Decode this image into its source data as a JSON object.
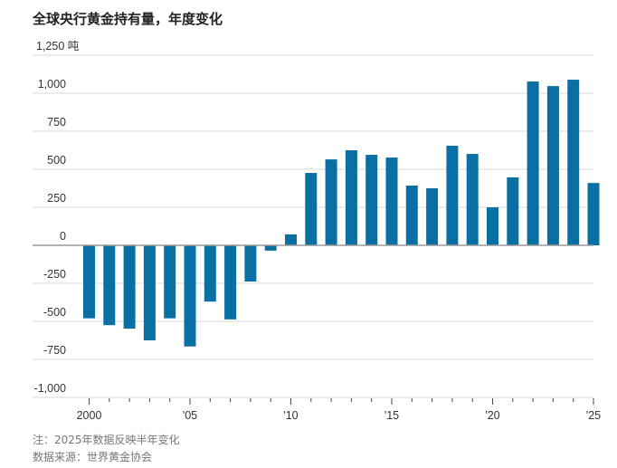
{
  "chart_data": {
    "type": "bar",
    "title": "全球央行黄金持有量，年度变化",
    "ylabel_unit": "吨",
    "ylim": [
      -1000,
      1250
    ],
    "yticks": [
      1250,
      1000,
      750,
      500,
      250,
      0,
      -250,
      -500,
      -750,
      -1000
    ],
    "ytick_labels": [
      "1,250 吨",
      "1,000",
      "750",
      "500",
      "250",
      "0",
      "-250",
      "-500",
      "-750",
      "-1,000"
    ],
    "x": [
      2000,
      2001,
      2002,
      2003,
      2004,
      2005,
      2006,
      2007,
      2008,
      2009,
      2010,
      2011,
      2012,
      2013,
      2014,
      2015,
      2016,
      2017,
      2018,
      2019,
      2020,
      2021,
      2022,
      2023,
      2024,
      2025
    ],
    "values": [
      -480,
      -525,
      -548,
      -625,
      -480,
      -665,
      -370,
      -487,
      -238,
      -35,
      72,
      476,
      565,
      625,
      595,
      577,
      393,
      375,
      655,
      601,
      250,
      447,
      1077,
      1047,
      1089,
      410
    ],
    "xtick_labels": [
      {
        "year": 2000,
        "label": "2000"
      },
      {
        "year": 2005,
        "label": "'05"
      },
      {
        "year": 2010,
        "label": "'10"
      },
      {
        "year": 2015,
        "label": "'15"
      },
      {
        "year": 2020,
        "label": "'20"
      },
      {
        "year": 2025,
        "label": "'25"
      }
    ],
    "grid": true,
    "bar_color": "#0a6fa3"
  },
  "footer": {
    "note": "注：2025年数据反映半年变化",
    "source": "数据来源：世界黄金协会"
  }
}
